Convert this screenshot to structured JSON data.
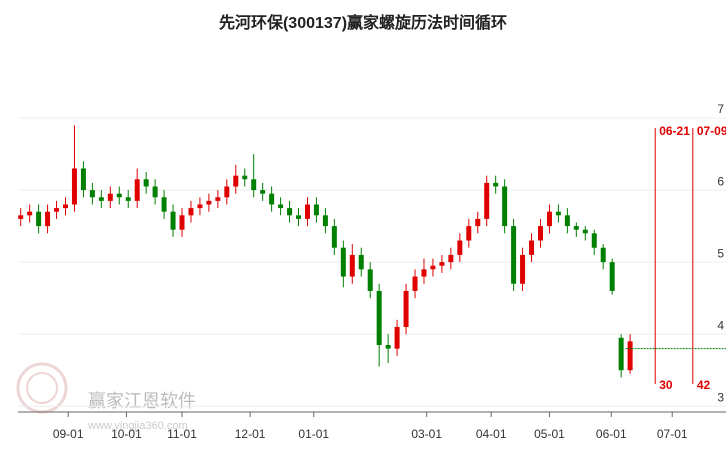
{
  "chart_data": {
    "type": "candlestick",
    "title": "先河环保(300137)赢家螺旋历法时间循环",
    "watermark": "赢家江恩软件",
    "watermark_url": "www.yingjia360.com",
    "up_color": "#e00000",
    "down_color": "#008000",
    "xlim": [
      -0.3,
      78.7
    ],
    "xticks": [
      {
        "value": 5.3,
        "label": "09-01"
      },
      {
        "value": 11.8,
        "label": "10-01"
      },
      {
        "value": 18.0,
        "label": "11-01"
      },
      {
        "value": 25.6,
        "label": "12-01"
      },
      {
        "value": 32.7,
        "label": "01-01"
      },
      {
        "value": 45.3,
        "label": "03-01"
      },
      {
        "value": 52.5,
        "label": "04-01"
      },
      {
        "value": 59.0,
        "label": "05-01"
      },
      {
        "value": 65.9,
        "label": "06-01"
      },
      {
        "value": 72.7,
        "label": "07-01"
      }
    ],
    "ylim": [
      2.92,
      7.5
    ],
    "yticks": [
      3,
      4,
      5,
      6,
      7
    ],
    "grid": true,
    "open": [
      5.6,
      5.65,
      5.7,
      5.5,
      5.7,
      5.75,
      5.8,
      6.3,
      6.0,
      5.9,
      5.85,
      5.95,
      5.9,
      5.85,
      6.15,
      6.05,
      5.9,
      5.7,
      5.45,
      5.65,
      5.75,
      5.8,
      5.85,
      5.9,
      6.05,
      6.2,
      6.15,
      6.0,
      5.95,
      5.8,
      5.75,
      5.65,
      5.6,
      5.8,
      5.65,
      5.5,
      5.2,
      4.8,
      5.1,
      4.9,
      4.6,
      3.85,
      3.8,
      4.1,
      4.6,
      4.8,
      4.9,
      4.95,
      5.0,
      5.1,
      5.3,
      5.5,
      5.6,
      6.1,
      6.05,
      5.5,
      4.7,
      5.1,
      5.3,
      5.5,
      5.7,
      5.65,
      5.5,
      5.45,
      5.4,
      5.2,
      5.0,
      3.95,
      3.5
    ],
    "high": [
      5.75,
      5.8,
      5.8,
      5.8,
      5.85,
      5.9,
      6.9,
      6.4,
      6.1,
      6.0,
      6.05,
      6.05,
      6.0,
      6.3,
      6.25,
      6.15,
      6.0,
      5.8,
      5.75,
      5.85,
      5.9,
      5.95,
      6.0,
      6.15,
      6.35,
      6.3,
      6.5,
      6.1,
      6.05,
      5.9,
      5.85,
      5.75,
      5.9,
      5.9,
      5.75,
      5.6,
      5.3,
      5.25,
      5.2,
      5.0,
      4.7,
      4.0,
      4.2,
      4.7,
      4.9,
      5.05,
      5.05,
      5.1,
      5.2,
      5.4,
      5.6,
      5.7,
      6.2,
      6.2,
      6.15,
      5.6,
      5.2,
      5.4,
      5.6,
      5.8,
      5.8,
      5.75,
      5.55,
      5.5,
      5.45,
      5.25,
      5.05,
      4.0,
      4.0
    ],
    "low": [
      5.5,
      5.55,
      5.4,
      5.4,
      5.6,
      5.65,
      5.7,
      5.9,
      5.8,
      5.75,
      5.75,
      5.8,
      5.75,
      5.75,
      5.95,
      5.8,
      5.6,
      5.35,
      5.35,
      5.55,
      5.65,
      5.7,
      5.75,
      5.8,
      5.95,
      6.05,
      5.9,
      5.85,
      5.7,
      5.65,
      5.55,
      5.5,
      5.5,
      5.55,
      5.4,
      5.1,
      4.65,
      4.7,
      4.8,
      4.5,
      3.55,
      3.6,
      3.7,
      4.0,
      4.5,
      4.7,
      4.8,
      4.85,
      4.9,
      5.0,
      5.2,
      5.4,
      5.5,
      5.95,
      5.4,
      4.6,
      4.6,
      5.0,
      5.2,
      5.4,
      5.55,
      5.4,
      5.35,
      5.3,
      5.1,
      4.9,
      4.55,
      3.4,
      3.45
    ],
    "close": [
      5.65,
      5.7,
      5.5,
      5.7,
      5.75,
      5.8,
      6.3,
      6.0,
      5.9,
      5.85,
      5.95,
      5.9,
      5.85,
      6.15,
      6.05,
      5.9,
      5.7,
      5.45,
      5.65,
      5.75,
      5.8,
      5.85,
      5.9,
      6.05,
      6.2,
      6.15,
      6.0,
      5.95,
      5.8,
      5.75,
      5.65,
      5.6,
      5.8,
      5.65,
      5.5,
      5.2,
      4.8,
      5.1,
      4.9,
      4.6,
      3.85,
      3.8,
      4.1,
      4.6,
      4.8,
      4.9,
      4.95,
      5.0,
      5.1,
      5.3,
      5.5,
      5.6,
      6.1,
      6.05,
      5.5,
      4.7,
      5.1,
      5.3,
      5.5,
      5.7,
      5.65,
      5.5,
      5.45,
      5.4,
      5.2,
      5.0,
      4.6,
      3.5,
      3.9
    ],
    "reference_line": {
      "value": 3.8,
      "x_start": 67.5,
      "color": "#008000"
    },
    "cycle_lines": [
      {
        "x": 70.8,
        "label": "06-21",
        "count": 30
      },
      {
        "x": 75.0,
        "label": "07-09",
        "count": 42
      }
    ],
    "cycle_color": "#e00000"
  }
}
